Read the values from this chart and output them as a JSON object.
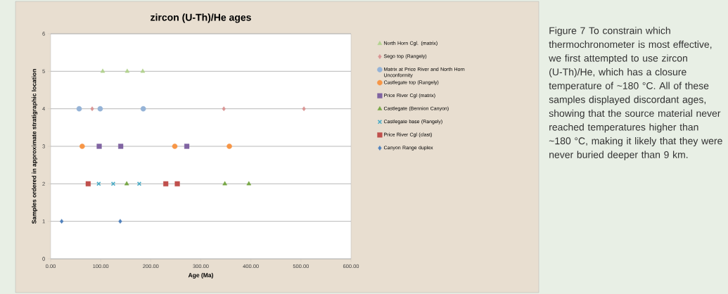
{
  "chart_data": {
    "type": "scatter",
    "title": "zircon (U-Th)/He ages",
    "xlabel": "Age (Ma)",
    "ylabel": "Samples ordered in approximate stratigraphic location",
    "xlim": [
      0,
      600
    ],
    "xticks": [
      {
        "value": 0,
        "label": "0.00"
      },
      {
        "value": 100,
        "label": "100.00"
      },
      {
        "value": 200,
        "label": "200.00"
      },
      {
        "value": 300,
        "label": "300.00"
      },
      {
        "value": 400,
        "label": "400.00"
      },
      {
        "value": 500,
        "label": "500.00"
      },
      {
        "value": 600,
        "label": "600.00"
      }
    ],
    "ylim": [
      0,
      6
    ],
    "yticks": [
      0,
      1,
      2,
      3,
      4,
      5,
      6
    ],
    "grid": "y",
    "legend": "right",
    "series": [
      {
        "name": "North Horn Cgl. (matrix)",
        "color": "#b3d38f",
        "marker": "triangle",
        "x": [
          104,
          153,
          184
        ],
        "values": [
          5,
          5,
          5
        ]
      },
      {
        "name": "Sego top (Rangely)",
        "color": "#d99594",
        "marker": "diamond",
        "x": [
          83,
          346,
          506
        ],
        "values": [
          4,
          4,
          4
        ]
      },
      {
        "name": "Matrix at Price River and North Horn Unconformity",
        "color": "#95b3d7",
        "marker": "circle",
        "x": [
          57,
          99,
          185
        ],
        "values": [
          4,
          4,
          4
        ]
      },
      {
        "name": "Castlegate top (Rangely)",
        "color": "#f79646",
        "marker": "circle",
        "x": [
          63,
          248,
          357
        ],
        "values": [
          3,
          3,
          3
        ]
      },
      {
        "name": "Price River Cgl (matrix)",
        "color": "#8064a2",
        "marker": "square",
        "x": [
          97,
          140,
          272
        ],
        "values": [
          3,
          3,
          3
        ]
      },
      {
        "name": "Castlegate (Bennion Canyon)",
        "color": "#77a745",
        "marker": "triangle",
        "x": [
          152,
          348,
          396
        ],
        "values": [
          2,
          2,
          2
        ]
      },
      {
        "name": "Castlegate base (Rangely)",
        "color": "#4bacc6",
        "marker": "cross",
        "x": [
          96,
          125,
          177
        ],
        "values": [
          2,
          2,
          2
        ]
      },
      {
        "name": "Price River Cgl (clast)",
        "color": "#c0504d",
        "marker": "square",
        "x": [
          75,
          230,
          253
        ],
        "values": [
          2,
          2,
          2
        ]
      },
      {
        "name": "Canyon Range duplex",
        "color": "#4f81bd",
        "marker": "diamond",
        "x": [
          22,
          139
        ],
        "values": [
          1,
          1
        ]
      }
    ],
    "annotations": [
      "Figure 7 To constrain which thermochronometer is most effective, we first attempted to use zircon (U-Th)/He, which has a closure temperature of ~180 °C. All of these samples displayed discordant ages, showing that the source material never reached temperatures higher than ~180 °C, making it likely that they were never buried deeper than 9 km."
    ]
  }
}
